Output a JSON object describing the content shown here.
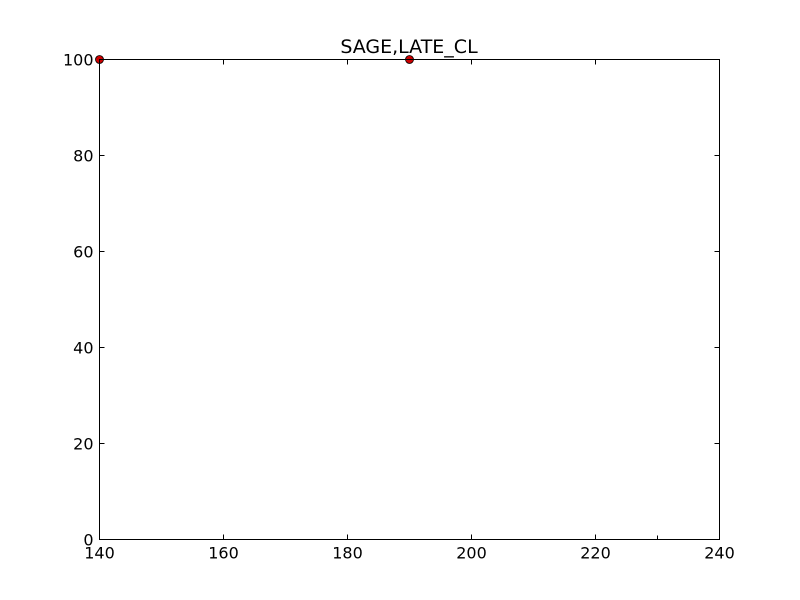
{
  "chart_data": {
    "type": "scatter",
    "title": "SAGE,LATE_CL",
    "xlabel": "",
    "ylabel": "",
    "xlim": [
      140,
      240
    ],
    "ylim": [
      0,
      100
    ],
    "x_ticks": [
      140,
      160,
      180,
      200,
      220,
      240
    ],
    "y_ticks": [
      0,
      20,
      40,
      60,
      80,
      100
    ],
    "grid": false,
    "series": [
      {
        "marker": "circle",
        "color": "#cc0000",
        "points": [
          {
            "x": 140,
            "y": 100
          },
          {
            "x": 190,
            "y": 100
          }
        ]
      }
    ]
  }
}
